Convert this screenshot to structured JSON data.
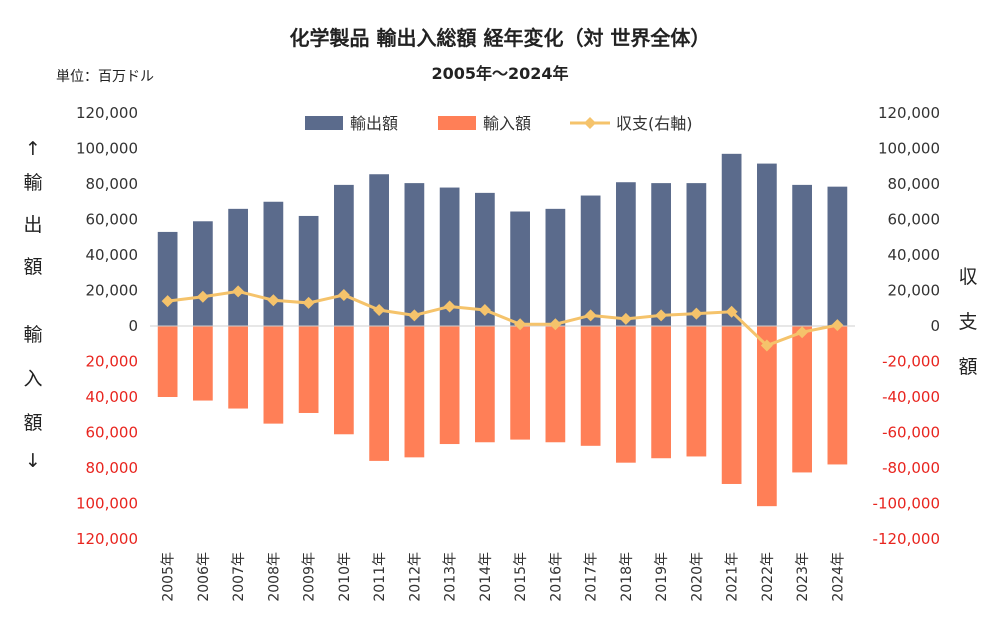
{
  "header": {
    "title": "化学製品 輸出入総額 経年変化（対 世界全体）",
    "subtitle": "2005年～2024年",
    "unit": "単位：百万ドル"
  },
  "left_axis_label": [
    "↑",
    "輸",
    "出",
    "額",
    "輸",
    "入",
    "額",
    "↓"
  ],
  "right_axis_label": [
    "収",
    "支",
    "額"
  ],
  "colors": {
    "exports": "#5b6b8c",
    "imports": "#ff7f57",
    "balance": "#f5c36b",
    "negative_tick": "#e8251f",
    "positive_tick": "#333333"
  },
  "chart_data": {
    "type": "bar",
    "categories": [
      "2005年",
      "2006年",
      "2007年",
      "2008年",
      "2009年",
      "2010年",
      "2011年",
      "2012年",
      "2013年",
      "2014年",
      "2015年",
      "2016年",
      "2017年",
      "2018年",
      "2019年",
      "2020年",
      "2021年",
      "2022年",
      "2023年",
      "2024年"
    ],
    "series": [
      {
        "name": "輸出額",
        "type": "bar",
        "axis": "left",
        "values": [
          53000,
          59000,
          66000,
          70000,
          62000,
          79500,
          85500,
          80500,
          78000,
          75000,
          64500,
          66000,
          73500,
          81000,
          80500,
          80500,
          97000,
          91500,
          79500,
          78500
        ]
      },
      {
        "name": "輸入額",
        "type": "bar",
        "axis": "left",
        "values": [
          -40000,
          -42000,
          -46500,
          -55000,
          -49000,
          -61000,
          -76000,
          -74000,
          -66500,
          -65500,
          -64000,
          -65500,
          -67500,
          -77000,
          -74500,
          -73500,
          -89000,
          -101500,
          -82500,
          -78000
        ]
      },
      {
        "name": "収支(右軸)",
        "type": "line",
        "axis": "right",
        "marker": "diamond",
        "values": [
          14000,
          16500,
          19500,
          14500,
          13000,
          17500,
          9000,
          6000,
          11000,
          9000,
          1000,
          1000,
          6000,
          4000,
          6000,
          7000,
          8000,
          -11000,
          -3500,
          500
        ]
      }
    ],
    "yticks": [
      "120,000",
      "100,000",
      "80,000",
      "60,000",
      "40,000",
      "20,000",
      "0",
      "-20,000",
      "-40,000",
      "-60,000",
      "-80,000",
      "-100,000",
      "-120,000"
    ],
    "left_ticks": [
      "120,000",
      "100,000",
      "80,000",
      "60,000",
      "40,000",
      "20,000",
      "0",
      "20,000",
      "40,000",
      "60,000",
      "80,000",
      "100,000",
      "120,000"
    ],
    "right_ticks": [
      "120,000",
      "100,000",
      "80,000",
      "60,000",
      "40,000",
      "20,000",
      "0",
      "-20,000",
      "-40,000",
      "-60,000",
      "-80,000",
      "-100,000",
      "-120,000"
    ],
    "ylim": [
      -120000,
      120000
    ],
    "y2lim": [
      -120000,
      120000
    ],
    "legend_position": "top-center",
    "grid": false
  }
}
